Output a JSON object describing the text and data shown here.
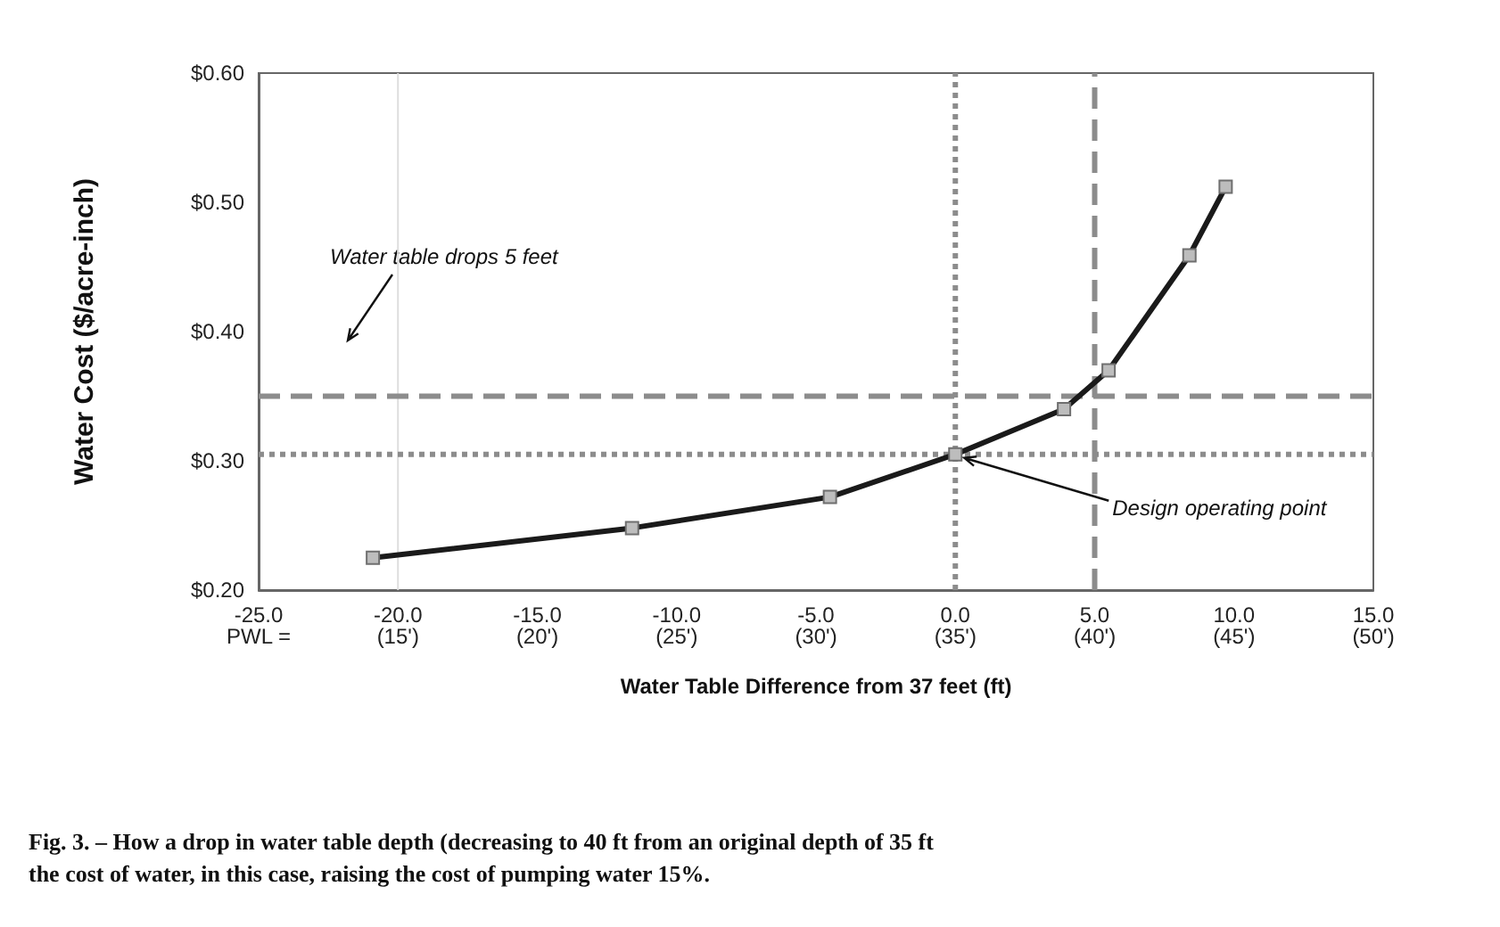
{
  "chart_data": {
    "type": "line",
    "xlabel": "Water Table Difference from 37 feet (ft)",
    "ylabel": "Water Cost ($/acre-inch)",
    "x": [
      -20.9,
      -11.6,
      -4.5,
      0,
      3.9,
      5.5,
      8.4,
      9.7
    ],
    "series": [
      {
        "color": "#1a1a1a",
        "values": [
          0.225,
          0.248,
          0.272,
          0.305,
          0.34,
          0.37,
          0.459,
          0.512
        ]
      }
    ],
    "xlim": [
      -25,
      15
    ],
    "xticks": [
      {
        "value": -25,
        "label": "-25.0"
      },
      {
        "value": -20,
        "label": "-20.0"
      },
      {
        "value": -15,
        "label": "-15.0"
      },
      {
        "value": -10,
        "label": "-10.0"
      },
      {
        "value": -5,
        "label": "-5.0"
      },
      {
        "value": 0,
        "label": "0.0"
      },
      {
        "value": 5,
        "label": "5.0"
      },
      {
        "value": 10,
        "label": "10.0"
      },
      {
        "value": 15,
        "label": "15.0"
      }
    ],
    "ylim": [
      0.2,
      0.6
    ],
    "yticks": [
      {
        "value": 0.2,
        "label": "$0.20"
      },
      {
        "value": 0.3,
        "label": "$0.30"
      },
      {
        "value": 0.4,
        "label": "$0.40"
      },
      {
        "value": 0.5,
        "label": "$0.50"
      },
      {
        "value": 0.6,
        "label": "$0.60"
      }
    ],
    "marker": "square",
    "line_style": "solid",
    "ref_lines": [
      {
        "axis": "x",
        "value": -20,
        "color": "#dddddd",
        "line_style": "solid"
      },
      {
        "axis": "y",
        "value": 0.305,
        "color": "#8c8c8c",
        "line_style": "dotted"
      },
      {
        "axis": "x",
        "value": 0,
        "color": "#8c8c8c",
        "line_style": "dotted"
      },
      {
        "axis": "y",
        "value": 0.35,
        "color": "#8c8c8c",
        "line_style": "dashed"
      },
      {
        "axis": "x",
        "value": 5,
        "color": "#8c8c8c",
        "line_style": "dashed"
      }
    ],
    "annotations": [
      "Water table drops 5 feet",
      {
        "text": "Design operating point",
        "x": 0,
        "y": 0.305
      },
      "PWL =",
      "(15')",
      "(20')",
      "(25')",
      "(30')",
      "(35')",
      "(40')",
      "(45')",
      "(50')",
      "Fig. 3. – How a drop in water table depth (decreasing to 40 ft from an original depth of 35 ft\nthe cost of water, in this case, raising the cost of pumping water 15%."
    ]
  }
}
